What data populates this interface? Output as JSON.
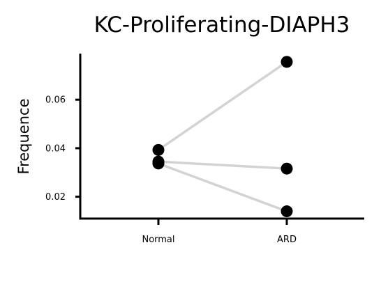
{
  "chart_data": {
    "type": "scatter",
    "title": "KC-Proliferating-DIAPH3",
    "xlabel": "",
    "ylabel": "Frequence",
    "categories": [
      "Normal",
      "ARD"
    ],
    "yticks": [
      0.02,
      0.04,
      0.06
    ],
    "ylim": [
      0.011,
      0.079
    ],
    "grid": false,
    "pairs": [
      {
        "values": [
          0.0393,
          0.0756
        ]
      },
      {
        "values": [
          0.0345,
          0.0316
        ]
      },
      {
        "values": [
          0.0337,
          0.014
        ]
      }
    ],
    "colors": {
      "point": "#000000",
      "line": "#d3d3d3",
      "axis": "#000000"
    }
  }
}
